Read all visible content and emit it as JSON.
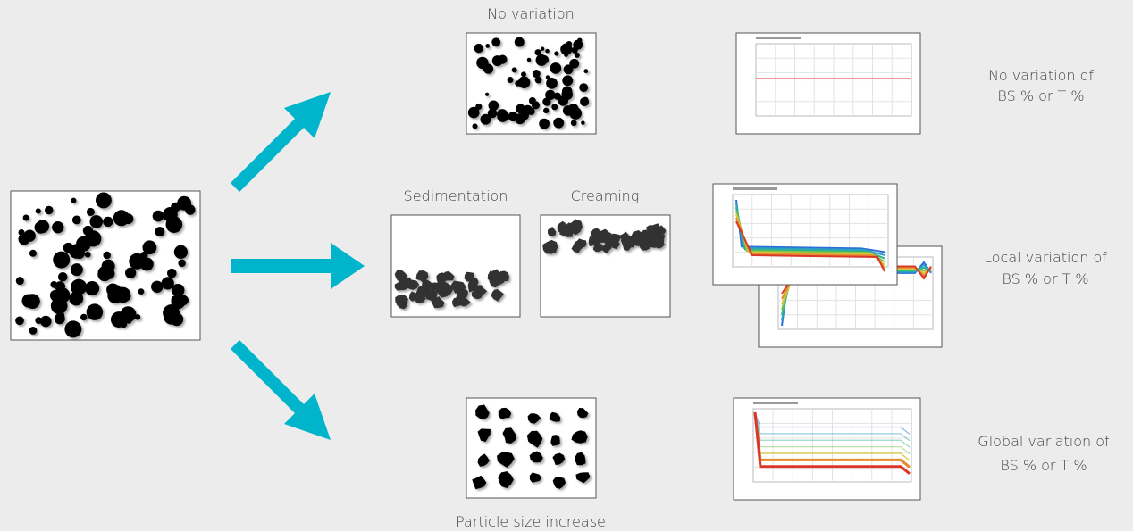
{
  "header": {
    "top_label": "No variation",
    "sedimentation_label": "Sedimentation",
    "creaming_label": "Creaming",
    "bottom_label": "Particle size increase"
  },
  "outcomes": [
    {
      "lines": [
        "No variation of",
        "BS % or T %"
      ]
    },
    {
      "lines": [
        "Local variation of",
        "BS % or T %"
      ]
    },
    {
      "lines": [
        "Global variation of",
        "BS % or T %"
      ]
    }
  ]
}
